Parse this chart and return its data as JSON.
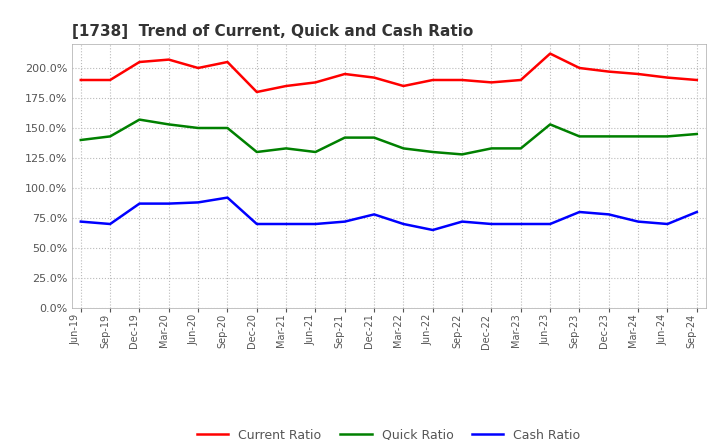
{
  "title": "[1738]  Trend of Current, Quick and Cash Ratio",
  "x_labels": [
    "Jun-19",
    "Sep-19",
    "Dec-19",
    "Mar-20",
    "Jun-20",
    "Sep-20",
    "Dec-20",
    "Mar-21",
    "Jun-21",
    "Sep-21",
    "Dec-21",
    "Mar-22",
    "Jun-22",
    "Sep-22",
    "Dec-22",
    "Mar-23",
    "Jun-23",
    "Sep-23",
    "Dec-23",
    "Mar-24",
    "Jun-24",
    "Sep-24"
  ],
  "current_ratio": [
    190,
    190,
    205,
    207,
    200,
    205,
    180,
    185,
    188,
    195,
    192,
    185,
    190,
    190,
    188,
    190,
    212,
    200,
    197,
    195,
    192,
    190
  ],
  "quick_ratio": [
    140,
    143,
    157,
    153,
    150,
    150,
    130,
    133,
    130,
    142,
    142,
    133,
    130,
    128,
    133,
    133,
    153,
    143,
    143,
    143,
    143,
    145
  ],
  "cash_ratio": [
    72,
    70,
    87,
    87,
    88,
    92,
    70,
    70,
    70,
    72,
    78,
    70,
    65,
    72,
    70,
    70,
    70,
    80,
    78,
    72,
    70,
    80
  ],
  "current_color": "#ff0000",
  "quick_color": "#008000",
  "cash_color": "#0000ff",
  "ylim": [
    0,
    220
  ],
  "yticks": [
    0,
    25,
    50,
    75,
    100,
    125,
    150,
    175,
    200
  ],
  "background_color": "#ffffff",
  "grid_color": "#bbbbbb"
}
